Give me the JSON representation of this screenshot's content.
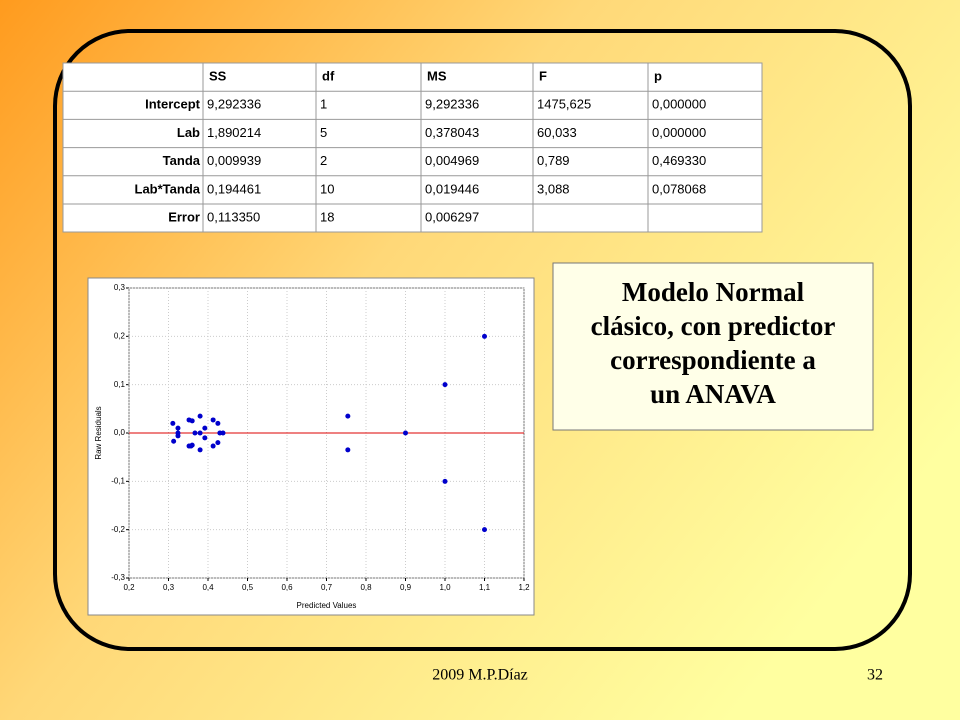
{
  "table": {
    "header": [
      "SS",
      "df",
      "MS",
      "F",
      "p"
    ],
    "rows": [
      {
        "label": "Intercept",
        "cells": [
          "9,292336",
          "1",
          "9,292336",
          "1475,625",
          "0,000000"
        ]
      },
      {
        "label": "Lab",
        "cells": [
          "1,890214",
          "5",
          "0,378043",
          "60,033",
          "0,000000"
        ]
      },
      {
        "label": "Tanda",
        "cells": [
          "0,009939",
          "2",
          "0,004969",
          "0,789",
          "0,469330"
        ]
      },
      {
        "label": "Lab*Tanda",
        "cells": [
          "0,194461",
          "10",
          "0,019446",
          "3,088",
          "0,078068"
        ]
      },
      {
        "label": "Error",
        "cells": [
          "0,113350",
          "18",
          "0,006297"
        ]
      }
    ]
  },
  "chart_data": {
    "type": "scatter",
    "xlabel": "Predicted Values",
    "ylabel": "Raw Residuals",
    "x": [
      0.311,
      0.313,
      0.324,
      0.324,
      0.324,
      0.352,
      0.352,
      0.357,
      0.36,
      0.36,
      0.367,
      0.38,
      0.38,
      0.38,
      0.392,
      0.392,
      0.413,
      0.413,
      0.425,
      0.425,
      0.43,
      0.438,
      0.754,
      0.754,
      0.9,
      1.0,
      1.0,
      1.1,
      1.1
    ],
    "values": [
      0.02,
      -0.017,
      0.01,
      -0.006,
      0.0,
      0.027,
      -0.027,
      -0.027,
      0.025,
      -0.025,
      0.0,
      0.035,
      -0.035,
      0.0,
      0.01,
      -0.01,
      0.027,
      -0.027,
      0.02,
      -0.02,
      0.0,
      0.0,
      0.035,
      -0.035,
      0.0,
      0.1,
      -0.1,
      0.2,
      -0.2
    ],
    "color": "#0000cc",
    "reference_line": {
      "y": 0,
      "color": "#dd0000"
    },
    "xlim": [
      0.2,
      1.2
    ],
    "xticks": [
      {
        "value": 0.2,
        "label": "0,2"
      },
      {
        "value": 0.3,
        "label": "0,3"
      },
      {
        "value": 0.4,
        "label": "0,4"
      },
      {
        "value": 0.5,
        "label": "0,5"
      },
      {
        "value": 0.6,
        "label": "0,6"
      },
      {
        "value": 0.7,
        "label": "0,7"
      },
      {
        "value": 0.8,
        "label": "0,8"
      },
      {
        "value": 0.9,
        "label": "0,9"
      },
      {
        "value": 1.0,
        "label": "1,0"
      },
      {
        "value": 1.1,
        "label": "1,1"
      },
      {
        "value": 1.2,
        "label": "1,2"
      }
    ],
    "ylim": [
      -0.3,
      0.3
    ],
    "yticks": [
      {
        "value": -0.3,
        "label": "-0,3"
      },
      {
        "value": -0.2,
        "label": "-0,2"
      },
      {
        "value": -0.1,
        "label": "-0,1"
      },
      {
        "value": 0,
        "label": "0,0"
      },
      {
        "value": 0.1,
        "label": "0,1"
      },
      {
        "value": 0.2,
        "label": "0,2"
      },
      {
        "value": 0.3,
        "label": "0,3"
      }
    ],
    "grid": true
  },
  "textbox": [
    "Modelo Normal",
    "clásico, con predictor",
    "correspondiente a",
    "un ANAVA"
  ],
  "footer": {
    "left": "2009   M.P.Díaz",
    "page": "32"
  }
}
